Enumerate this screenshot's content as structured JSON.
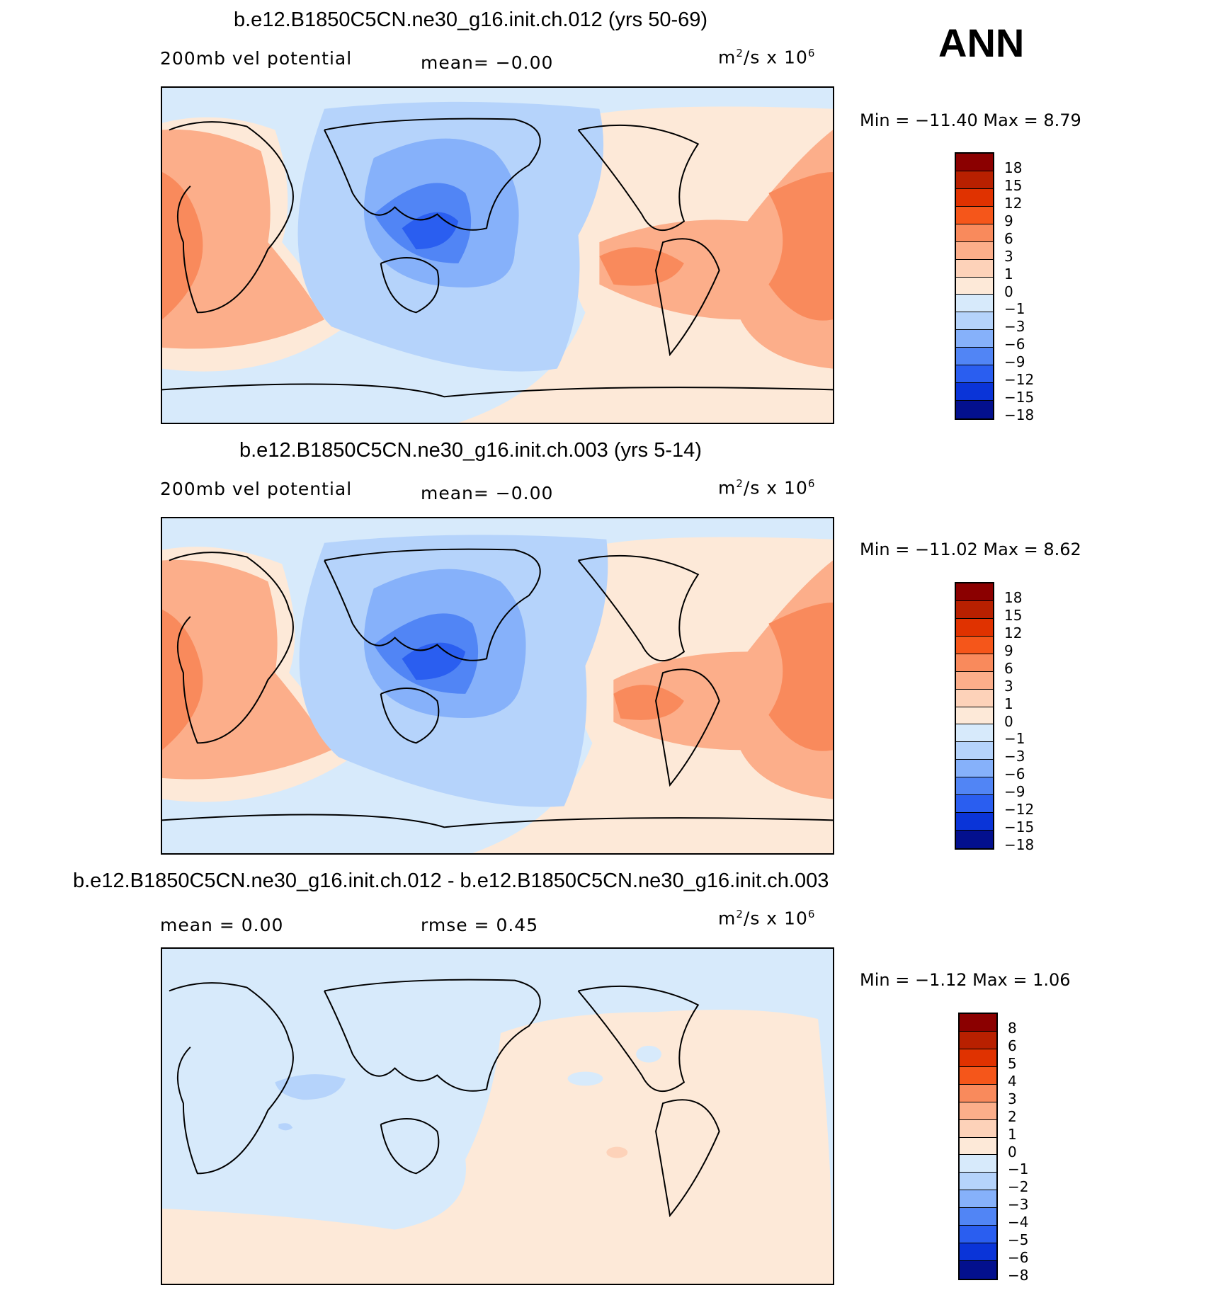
{
  "season": "ANN",
  "panels": [
    {
      "id": "top",
      "title": "b.e12.B1850C5CN.ne30_g16.init.ch.012 (yrs 50-69)",
      "left_label": "200mb vel potential",
      "center_label": "mean=   −0.00",
      "units_base": "m",
      "units_exp1": "2",
      "units_mid": "/s x 10",
      "units_exp2": "6",
      "minmax": "Min = −11.40  Max =     8.79",
      "colorbar_labels": [
        "18",
        "15",
        "12",
        "9",
        "6",
        "3",
        "1",
        "0",
        "−1",
        "−3",
        "−6",
        "−9",
        "−12",
        "−15",
        "−18"
      ],
      "colorbar_colors": [
        "#8b0000",
        "#b82000",
        "#e03200",
        "#f5561a",
        "#f98a5c",
        "#fcae8a",
        "#fdd2b9",
        "#fde9d8",
        "#d7eafb",
        "#b5d3fb",
        "#86b1fa",
        "#5185f5",
        "#2a5ef0",
        "#0a34d8",
        "#03108e"
      ]
    },
    {
      "id": "middle",
      "title": "b.e12.B1850C5CN.ne30_g16.init.ch.003 (yrs 5-14)",
      "left_label": "200mb vel potential",
      "center_label": "mean=   −0.00",
      "units_base": "m",
      "units_exp1": "2",
      "units_mid": "/s x 10",
      "units_exp2": "6",
      "minmax": "Min = −11.02  Max =     8.62",
      "colorbar_labels": [
        "18",
        "15",
        "12",
        "9",
        "6",
        "3",
        "1",
        "0",
        "−1",
        "−3",
        "−6",
        "−9",
        "−12",
        "−15",
        "−18"
      ],
      "colorbar_colors": [
        "#8b0000",
        "#b82000",
        "#e03200",
        "#f5561a",
        "#f98a5c",
        "#fcae8a",
        "#fdd2b9",
        "#fde9d8",
        "#d7eafb",
        "#b5d3fb",
        "#86b1fa",
        "#5185f5",
        "#2a5ef0",
        "#0a34d8",
        "#03108e"
      ]
    },
    {
      "id": "bottom",
      "title": "b.e12.B1850C5CN.ne30_g16.init.ch.012 - b.e12.B1850C5CN.ne30_g16.init.ch.003",
      "left_label": "mean =    0.00",
      "center_label": "rmse =    0.45",
      "units_base": "m",
      "units_exp1": "2",
      "units_mid": "/s x 10",
      "units_exp2": "6",
      "minmax": "Min =   −1.12  Max =    1.06",
      "colorbar_labels": [
        "8",
        "6",
        "5",
        "4",
        "3",
        "2",
        "1",
        "0",
        "−1",
        "−2",
        "−3",
        "−4",
        "−5",
        "−6",
        "−8"
      ],
      "colorbar_colors": [
        "#8b0000",
        "#b82000",
        "#e03200",
        "#f5561a",
        "#f98a5c",
        "#fcae8a",
        "#fdd2b9",
        "#fde9d8",
        "#d7eafb",
        "#b5d3fb",
        "#86b1fa",
        "#5185f5",
        "#2a5ef0",
        "#0a34d8",
        "#03108e"
      ]
    }
  ]
}
